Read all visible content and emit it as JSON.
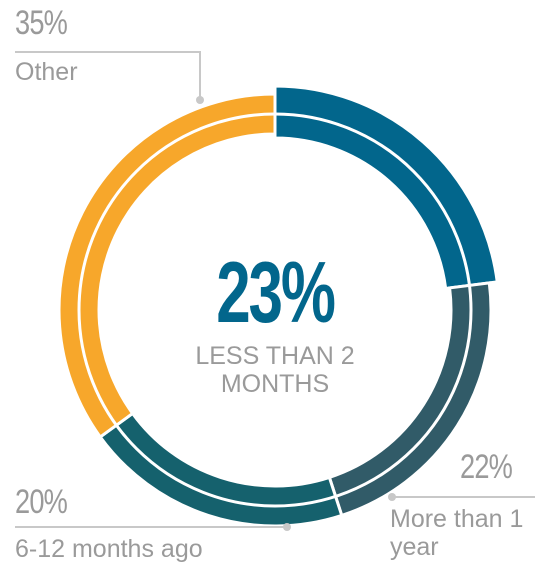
{
  "chart_data": {
    "type": "donut",
    "categories": [
      "LESS THAN 2 MONTHS",
      "More than 1 year",
      "6-12 months ago",
      "Other"
    ],
    "values": [
      23,
      22,
      20,
      35
    ],
    "value_labels": [
      "23%",
      "22%",
      "20%",
      "35%"
    ],
    "colors": [
      "#02668c",
      "#315b68",
      "#15616d",
      "#f7a72b"
    ]
  }
}
